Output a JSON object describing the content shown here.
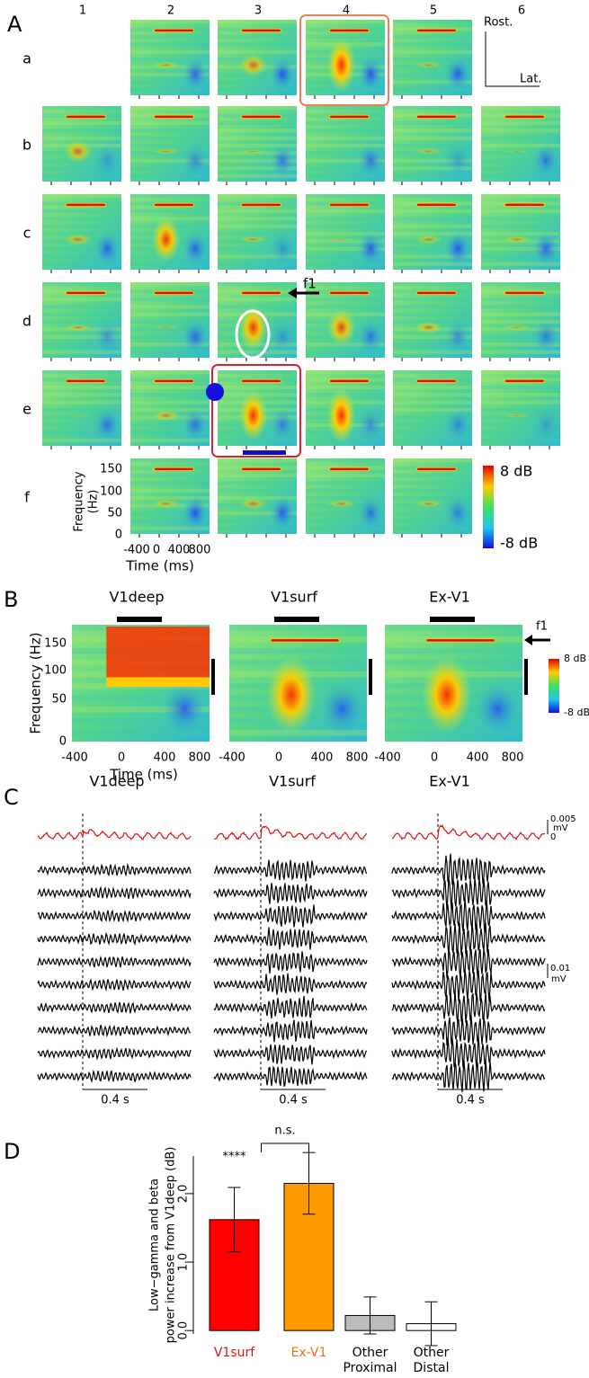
{
  "panel_a": {
    "label": "A",
    "columns": [
      "1",
      "2",
      "3",
      "4",
      "5",
      "6"
    ],
    "rows": [
      "a",
      "b",
      "c",
      "d",
      "e",
      "f"
    ],
    "orientation": [
      "Rost.",
      "Lat."
    ],
    "marker": "f1",
    "freq_label": [
      "Frequency",
      "(Hz)"
    ],
    "freq_ticks": [
      "150",
      "100",
      "50",
      "0"
    ],
    "time_ticks": [
      "-400",
      "0",
      "400",
      "800"
    ],
    "time_label": "Time (ms)",
    "colorbar": [
      "8 dB",
      "-8 dB"
    ]
  },
  "panel_b": {
    "label": "B",
    "titles": [
      "V1deep",
      "V1surf",
      "Ex-V1"
    ],
    "freq_label": "Frequency (Hz)",
    "freq_ticks": [
      "150",
      "100",
      "50",
      "0"
    ],
    "time_ticks": [
      "-400",
      "0",
      "400",
      "800"
    ],
    "time_label": "Time (ms)",
    "marker": "f1",
    "colorbar": [
      "8 dB",
      "-8 dB"
    ]
  },
  "panel_c": {
    "label": "C",
    "titles": [
      "V1deep",
      "V1surf",
      "Ex-V1"
    ],
    "scale_time": "0.4 s",
    "scale_lfp": [
      "0.005",
      "mV",
      "0"
    ],
    "scale_trace": [
      "0.01",
      "mV"
    ]
  },
  "chart_data": {
    "type": "bar",
    "panel_label": "D",
    "ylabel": [
      "Low−gamma and beta",
      "power increase from V1deep (dB)"
    ],
    "categories": [
      "V1surf",
      "Ex-V1",
      "Other Proximal",
      "Other Distal"
    ],
    "values": [
      1.62,
      2.15,
      0.22,
      0.1
    ],
    "errors": [
      0.47,
      0.45,
      0.27,
      0.32
    ],
    "colors": [
      "#ff0000",
      "#ff9900",
      "#bbbbbb",
      "#ffffff"
    ],
    "ylim": [
      -0.05,
      2.55
    ],
    "yticks": [
      {
        "value": 0,
        "label": "0.0"
      },
      {
        "value": 1,
        "label": "1.0"
      },
      {
        "value": 2,
        "label": "2.0"
      }
    ],
    "annotations": [
      "****",
      "n.s."
    ]
  }
}
